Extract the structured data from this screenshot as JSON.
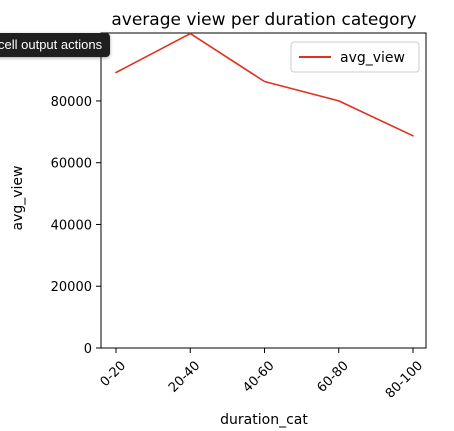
{
  "tooltip": {
    "text": "cell output actions"
  },
  "colors": {
    "line": "#e0301e",
    "axis": "#000000",
    "text": "#000000"
  },
  "chart_data": {
    "type": "line",
    "title": "average view per duration category",
    "xlabel": "duration_cat",
    "ylabel": "avg_view",
    "categories": [
      "0-20",
      "20-40",
      "40-60",
      "60-80",
      "80-100"
    ],
    "series": [
      {
        "name": "avg_view",
        "values": [
          89200,
          101800,
          86300,
          80000,
          68700
        ]
      }
    ],
    "yticks": [
      "0",
      "20000",
      "40000",
      "60000",
      "80000"
    ],
    "ylim": [
      0,
      102000
    ],
    "grid": false,
    "legend": "top-right",
    "xtick_rotation": -45
  }
}
